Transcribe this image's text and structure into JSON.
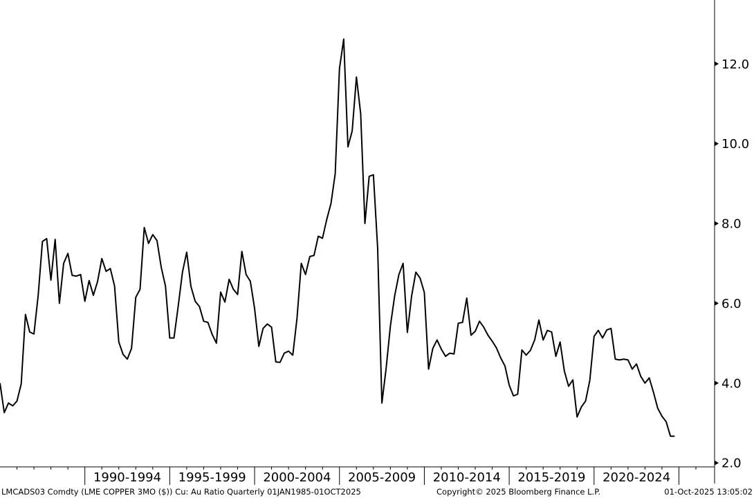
{
  "chart_data": {
    "type": "line",
    "title": "",
    "xlabel": "",
    "ylabel": "",
    "x_axis": {
      "range": [
        1985.0,
        2027.1
      ],
      "period_labels": [
        "1990-1994",
        "1995-1999",
        "2000-2004",
        "2005-2009",
        "2010-2014",
        "2015-2019",
        "2020-2024"
      ]
    },
    "y_axis": {
      "range": [
        1.9,
        13.6
      ],
      "ticks": [
        2.0,
        4.0,
        6.0,
        8.0,
        10.0,
        12.0
      ],
      "tick_labels": [
        "2.0",
        "4.0",
        "6.0",
        "8.0",
        "10.0",
        "12.0"
      ],
      "side": "right"
    },
    "grid": false,
    "legend": "none",
    "line_color": "#000000",
    "series": [
      {
        "frequency": "quarterly",
        "start": "1985-01",
        "values": [
          4.0,
          3.26,
          3.5,
          3.43,
          3.55,
          3.98,
          5.72,
          5.28,
          5.23,
          6.2,
          7.55,
          7.62,
          6.58,
          7.6,
          6.0,
          7.0,
          7.25,
          6.7,
          6.68,
          6.72,
          6.05,
          6.57,
          6.2,
          6.55,
          7.12,
          6.8,
          6.87,
          6.43,
          5.03,
          4.72,
          4.6,
          4.87,
          6.15,
          6.35,
          7.9,
          7.5,
          7.72,
          7.57,
          6.9,
          6.43,
          5.13,
          5.13,
          5.93,
          6.78,
          7.28,
          6.42,
          6.05,
          5.92,
          5.55,
          5.52,
          5.22,
          5.0,
          6.28,
          6.03,
          6.6,
          6.35,
          6.22,
          7.3,
          6.72,
          6.55,
          5.87,
          4.92,
          5.37,
          5.48,
          5.4,
          4.53,
          4.52,
          4.75,
          4.8,
          4.7,
          5.63,
          7.0,
          6.72,
          7.17,
          7.2,
          7.68,
          7.63,
          8.1,
          8.5,
          9.25,
          11.88,
          12.62,
          9.92,
          10.32,
          11.67,
          10.75,
          8.0,
          9.18,
          9.22,
          7.38,
          3.5,
          4.37,
          5.43,
          6.18,
          6.72,
          7.0,
          5.27,
          6.18,
          6.78,
          6.63,
          6.27,
          4.35,
          4.87,
          5.08,
          4.85,
          4.67,
          4.75,
          4.73,
          5.5,
          5.52,
          6.13,
          5.2,
          5.3,
          5.55,
          5.4,
          5.2,
          5.05,
          4.88,
          4.63,
          4.43,
          3.95,
          3.68,
          3.72,
          4.83,
          4.7,
          4.82,
          5.08,
          5.58,
          5.08,
          5.32,
          5.28,
          4.67,
          5.03,
          4.3,
          3.92,
          4.08,
          3.15,
          3.4,
          3.55,
          4.07,
          5.17,
          5.32,
          5.13,
          5.33,
          5.37,
          4.6,
          4.58,
          4.6,
          4.58,
          4.35,
          4.48,
          4.17,
          4.0,
          4.13,
          3.77,
          3.37,
          3.17,
          3.03,
          2.67,
          2.67
        ]
      }
    ]
  },
  "footer": {
    "ticker": "LMCADS03 Comdty (LME COPPER    3MO ($)) Cu: Au Ratio  Quarterly 01JAN1985-01OCT2025",
    "copyright": "Copyright© 2025 Bloomberg Finance L.P.",
    "timestamp": "01-Oct-2025 13:05:02"
  }
}
